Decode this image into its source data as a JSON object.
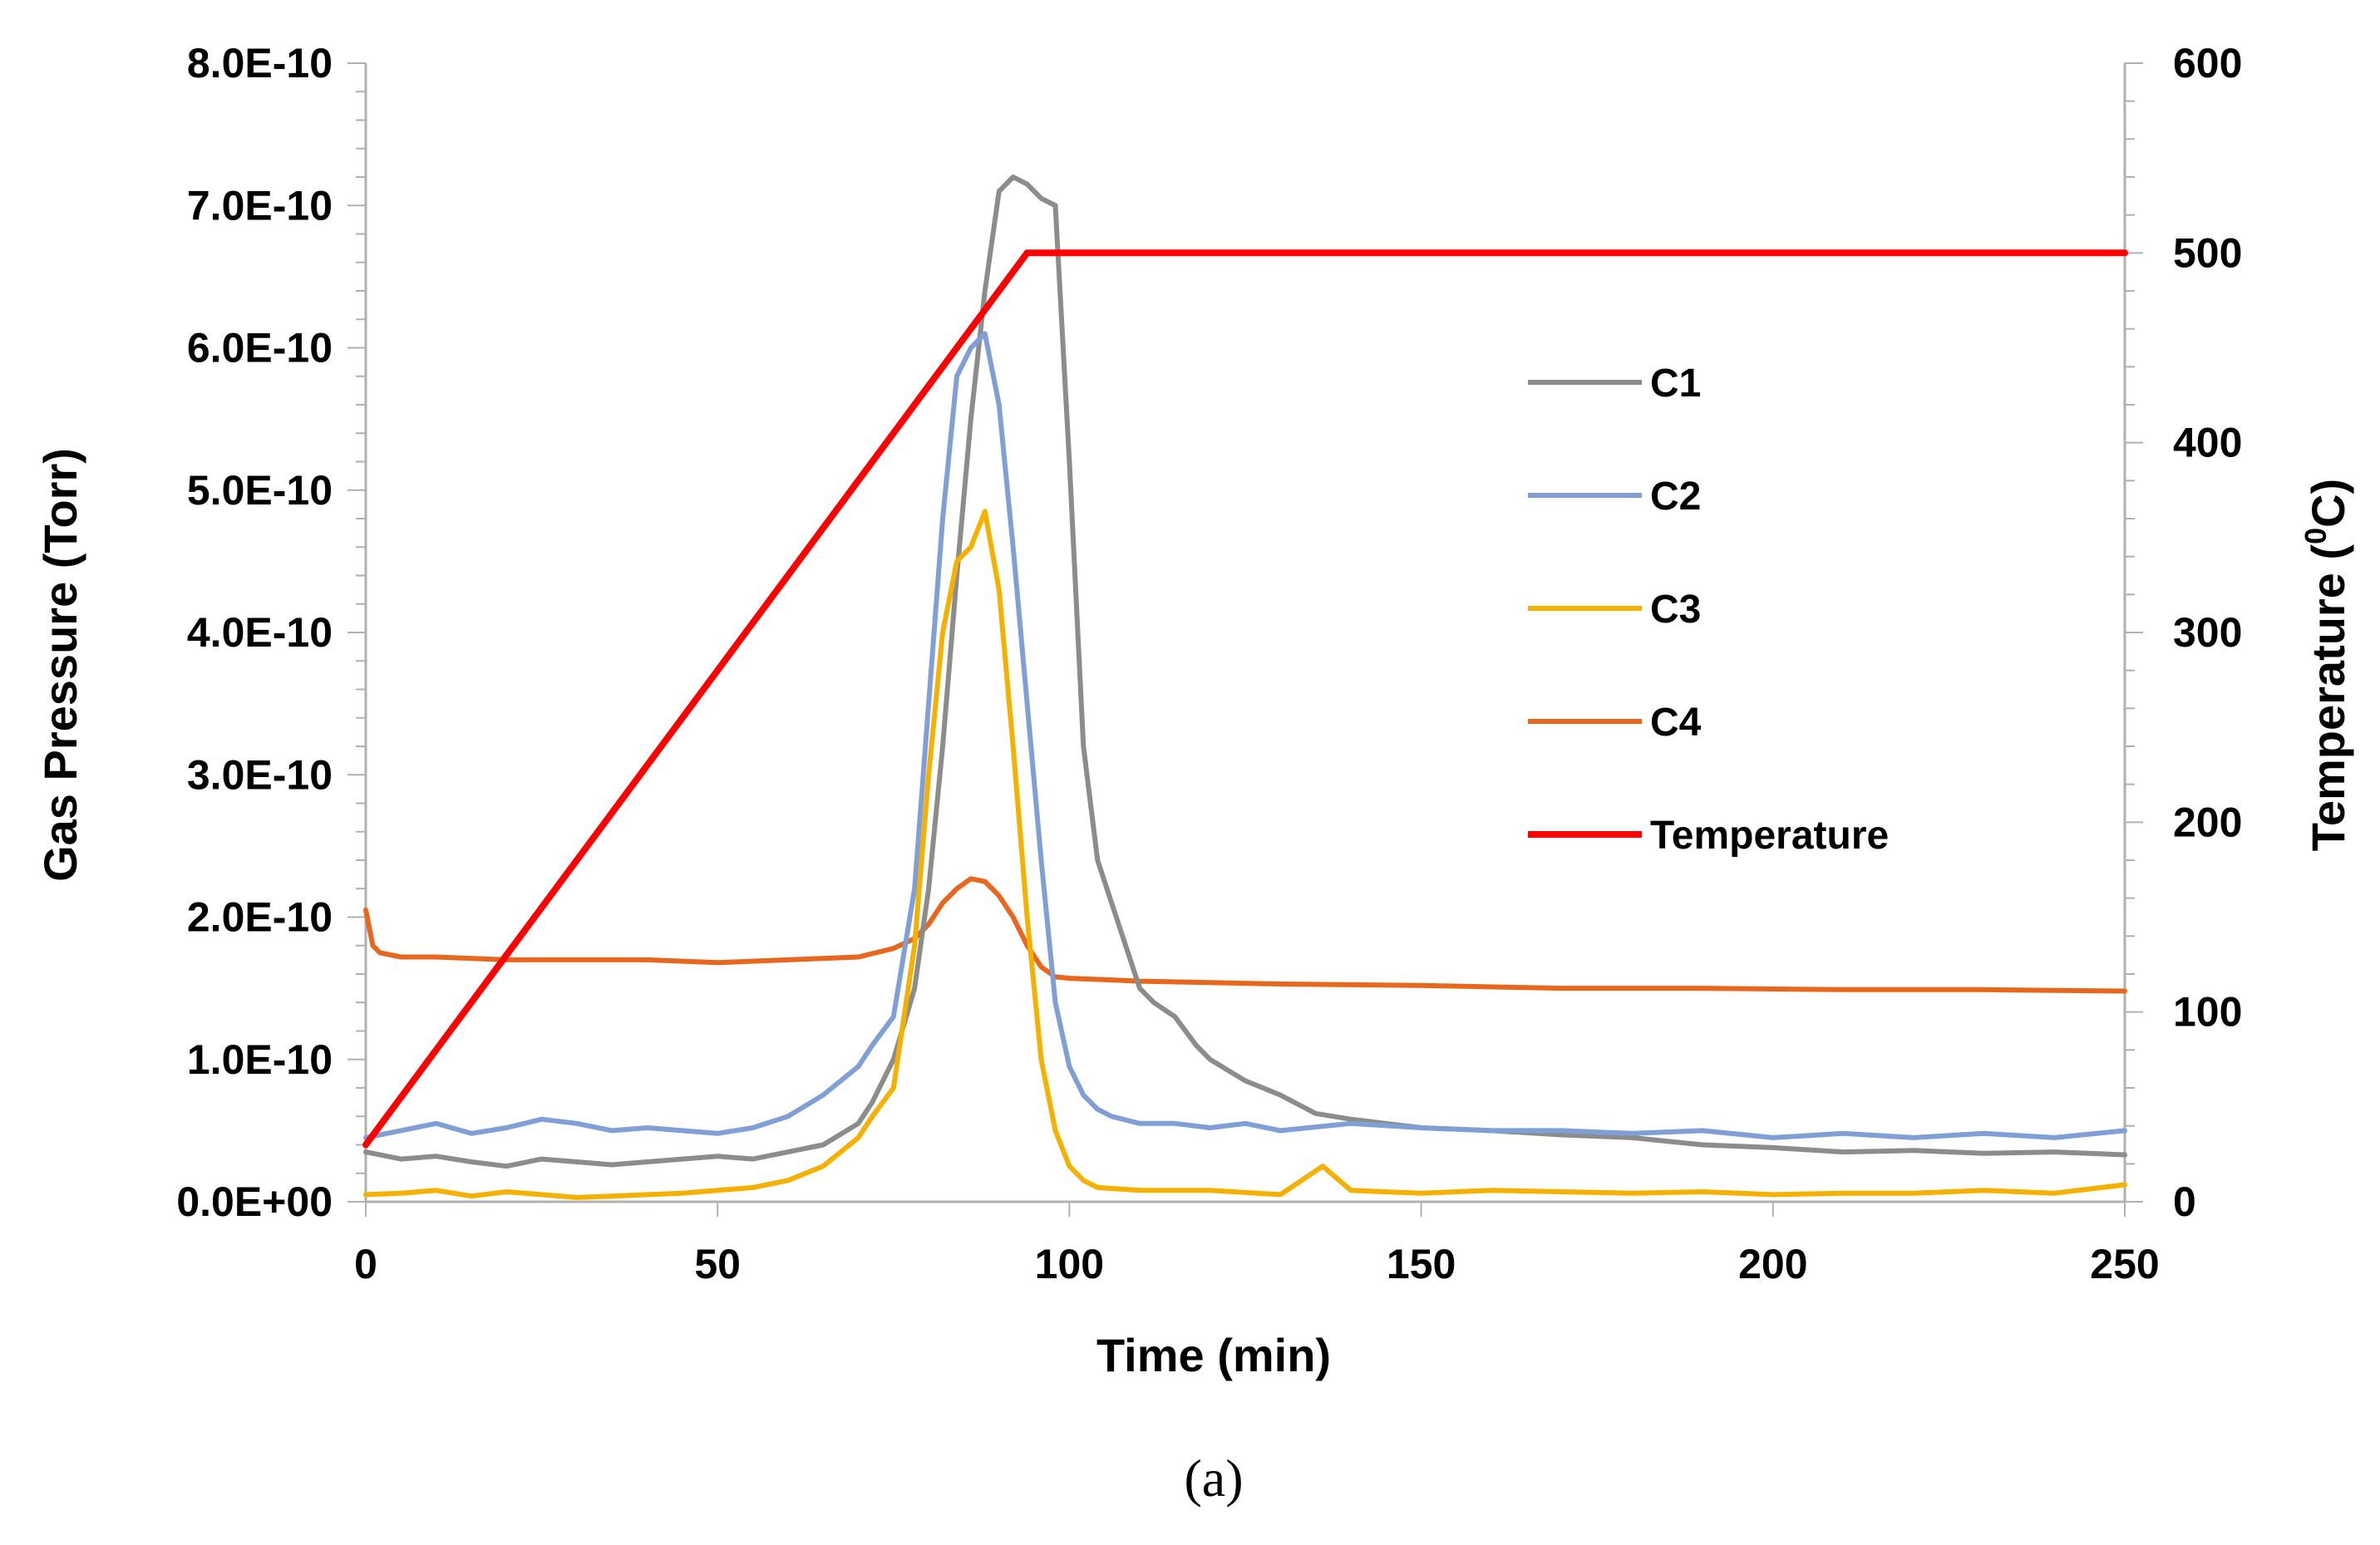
{
  "chart_data": {
    "type": "line",
    "title": "",
    "caption": "(a)",
    "xlabel": "Time (min)",
    "ylabel": "Gas Pressure (Torr)",
    "y2label": "Temperature (°C)",
    "y2label_main": "Temperature (",
    "y2label_sup": "0",
    "y2label_end": "C)",
    "xlim": [
      0,
      250
    ],
    "ylim": [
      0,
      8e-10
    ],
    "y2lim": [
      0,
      600
    ],
    "x_ticks": [
      "0",
      "50",
      "100",
      "150",
      "200",
      "250"
    ],
    "y_ticks": [
      "0.0E+00",
      "1.0E-10",
      "2.0E-10",
      "3.0E-10",
      "4.0E-10",
      "5.0E-10",
      "6.0E-10",
      "7.0E-10",
      "8.0E-10"
    ],
    "y2_ticks": [
      "0",
      "100",
      "200",
      "300",
      "400",
      "500",
      "600"
    ],
    "legend_position": "right",
    "series": [
      {
        "name": "C1",
        "color": "#8c8c8c",
        "axis": "left",
        "x": [
          0,
          5,
          10,
          15,
          20,
          25,
          30,
          35,
          40,
          45,
          50,
          55,
          60,
          65,
          70,
          72,
          75,
          78,
          80,
          82,
          84,
          86,
          88,
          90,
          92,
          94,
          96,
          98,
          100,
          102,
          104,
          106,
          108,
          110,
          112,
          115,
          118,
          120,
          125,
          130,
          135,
          140,
          145,
          150,
          160,
          170,
          180,
          190,
          200,
          210,
          220,
          230,
          240,
          250
        ],
        "values": [
          3.5e-11,
          3e-11,
          3.2e-11,
          2.8e-11,
          2.5e-11,
          3e-11,
          2.8e-11,
          2.6e-11,
          2.8e-11,
          3e-11,
          3.2e-11,
          3e-11,
          3.5e-11,
          4e-11,
          5.5e-11,
          7e-11,
          1e-10,
          1.5e-10,
          2.2e-10,
          3.2e-10,
          4.4e-10,
          5.5e-10,
          6.4e-10,
          7.1e-10,
          7.2e-10,
          7.15e-10,
          7.05e-10,
          7e-10,
          5.2e-10,
          3.2e-10,
          2.4e-10,
          2.1e-10,
          1.8e-10,
          1.5e-10,
          1.4e-10,
          1.3e-10,
          1.1e-10,
          1e-10,
          8.5e-11,
          7.5e-11,
          6.2e-11,
          5.8e-11,
          5.5e-11,
          5.2e-11,
          5e-11,
          4.7e-11,
          4.5e-11,
          4e-11,
          3.8e-11,
          3.5e-11,
          3.6e-11,
          3.4e-11,
          3.5e-11,
          3.3e-11
        ]
      },
      {
        "name": "C2",
        "color": "#7f9fd6",
        "axis": "left",
        "x": [
          0,
          5,
          10,
          15,
          20,
          25,
          30,
          35,
          40,
          45,
          50,
          55,
          60,
          65,
          70,
          72,
          75,
          78,
          80,
          82,
          84,
          86,
          88,
          90,
          92,
          94,
          96,
          98,
          100,
          102,
          104,
          106,
          110,
          115,
          120,
          125,
          130,
          140,
          150,
          160,
          170,
          180,
          190,
          200,
          210,
          220,
          230,
          240,
          250
        ],
        "values": [
          4.5e-11,
          5e-11,
          5.5e-11,
          4.8e-11,
          5.2e-11,
          5.8e-11,
          5.5e-11,
          5e-11,
          5.2e-11,
          5e-11,
          4.8e-11,
          5.2e-11,
          6e-11,
          7.5e-11,
          9.5e-11,
          1.1e-10,
          1.3e-10,
          2.2e-10,
          3.5e-10,
          4.8e-10,
          5.8e-10,
          6e-10,
          6.1e-10,
          5.6e-10,
          4.6e-10,
          3.5e-10,
          2.4e-10,
          1.4e-10,
          9.5e-11,
          7.5e-11,
          6.5e-11,
          6e-11,
          5.5e-11,
          5.5e-11,
          5.2e-11,
          5.5e-11,
          5e-11,
          5.5e-11,
          5.2e-11,
          5e-11,
          5e-11,
          4.8e-11,
          5e-11,
          4.5e-11,
          4.8e-11,
          4.5e-11,
          4.8e-11,
          4.5e-11,
          5e-11
        ]
      },
      {
        "name": "C3",
        "color": "#f5b000",
        "axis": "left",
        "x": [
          0,
          5,
          10,
          15,
          20,
          25,
          30,
          35,
          40,
          45,
          50,
          55,
          60,
          65,
          70,
          72,
          75,
          78,
          80,
          82,
          84,
          86,
          88,
          90,
          92,
          94,
          96,
          98,
          100,
          102,
          104,
          110,
          120,
          130,
          136,
          140,
          150,
          160,
          170,
          180,
          190,
          200,
          210,
          220,
          230,
          240,
          250
        ],
        "values": [
          5e-12,
          6e-12,
          8e-12,
          4e-12,
          7e-12,
          5e-12,
          3e-12,
          4e-12,
          5e-12,
          6e-12,
          8e-12,
          1e-11,
          1.5e-11,
          2.5e-11,
          4.5e-11,
          6e-11,
          8e-11,
          1.8e-10,
          3e-10,
          4e-10,
          4.5e-10,
          4.6e-10,
          4.85e-10,
          4.3e-10,
          3.2e-10,
          2e-10,
          1e-10,
          5e-11,
          2.5e-11,
          1.5e-11,
          1e-11,
          8e-12,
          8e-12,
          5e-12,
          2.5e-11,
          8e-12,
          6e-12,
          8e-12,
          7e-12,
          6e-12,
          7e-12,
          5e-12,
          6e-12,
          6e-12,
          8e-12,
          6e-12,
          1.2e-11
        ]
      },
      {
        "name": "C4",
        "color": "#e8671c",
        "axis": "left",
        "x": [
          0,
          1,
          2,
          5,
          10,
          20,
          30,
          40,
          50,
          60,
          70,
          75,
          78,
          80,
          82,
          84,
          86,
          88,
          90,
          92,
          94,
          96,
          98,
          100,
          105,
          110,
          120,
          130,
          150,
          170,
          190,
          210,
          230,
          250
        ],
        "values": [
          2.05e-10,
          1.8e-10,
          1.75e-10,
          1.72e-10,
          1.72e-10,
          1.7e-10,
          1.7e-10,
          1.7e-10,
          1.68e-10,
          1.7e-10,
          1.72e-10,
          1.78e-10,
          1.85e-10,
          1.95e-10,
          2.1e-10,
          2.2e-10,
          2.27e-10,
          2.25e-10,
          2.15e-10,
          2e-10,
          1.8e-10,
          1.65e-10,
          1.58e-10,
          1.57e-10,
          1.56e-10,
          1.55e-10,
          1.54e-10,
          1.53e-10,
          1.52e-10,
          1.5e-10,
          1.5e-10,
          1.49e-10,
          1.49e-10,
          1.48e-10
        ]
      },
      {
        "name": "Temperature",
        "color": "#ff0000",
        "axis": "right",
        "x": [
          0,
          94,
          250
        ],
        "values": [
          30,
          500,
          500
        ]
      }
    ]
  }
}
